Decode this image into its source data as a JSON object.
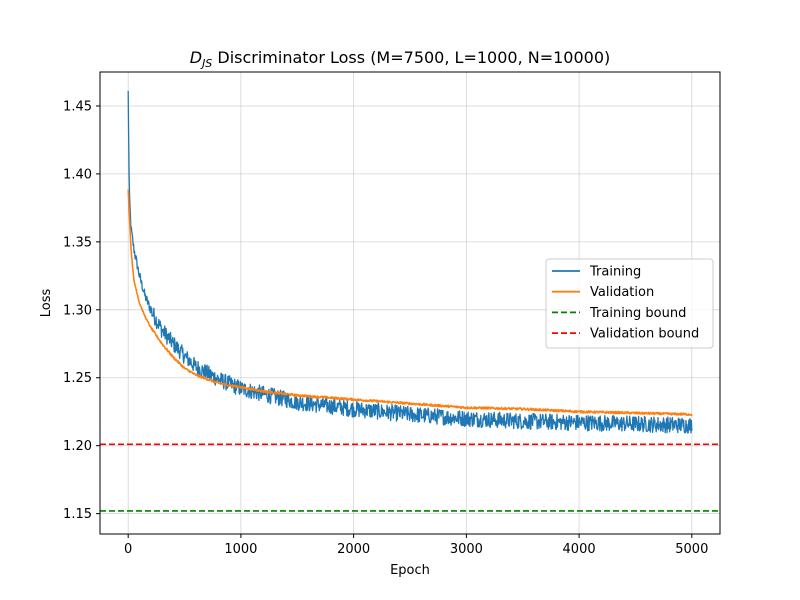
{
  "chart_data": {
    "type": "line",
    "title": {
      "main": "D",
      "sub": "JS",
      "rest": " Discriminator Loss (M=7500, L=1000, N=10000)"
    },
    "xlabel": "Epoch",
    "ylabel": "Loss",
    "xlim": [
      -250,
      5250
    ],
    "ylim": [
      1.135,
      1.475
    ],
    "xticks": [
      0,
      1000,
      2000,
      3000,
      4000,
      5000
    ],
    "xtick_labels": [
      "0",
      "1000",
      "2000",
      "3000",
      "4000",
      "5000"
    ],
    "yticks": [
      1.15,
      1.2,
      1.25,
      1.3,
      1.35,
      1.4,
      1.45
    ],
    "ytick_labels": [
      "1.15",
      "1.20",
      "1.25",
      "1.30",
      "1.35",
      "1.40",
      "1.45"
    ],
    "grid": true,
    "legend_position": "center-right",
    "series": [
      {
        "name": "Training",
        "color": "#1f77b4",
        "style": "solid",
        "x": [
          0,
          10,
          25,
          50,
          100,
          150,
          200,
          300,
          400,
          500,
          600,
          800,
          1000,
          1200,
          1500,
          2000,
          2500,
          3000,
          3500,
          4000,
          4500,
          5000
        ],
        "y": [
          1.46,
          1.385,
          1.36,
          1.345,
          1.325,
          1.31,
          1.3,
          1.285,
          1.275,
          1.266,
          1.258,
          1.249,
          1.242,
          1.238,
          1.232,
          1.227,
          1.223,
          1.22,
          1.218,
          1.217,
          1.216,
          1.215
        ],
        "noise": 0.006
      },
      {
        "name": "Validation",
        "color": "#ff7f0e",
        "style": "solid",
        "x": [
          0,
          10,
          25,
          50,
          100,
          150,
          200,
          300,
          400,
          500,
          600,
          800,
          1000,
          1200,
          1500,
          2000,
          2500,
          3000,
          3500,
          4000,
          4500,
          5000
        ],
        "y": [
          1.389,
          1.37,
          1.345,
          1.322,
          1.305,
          1.295,
          1.287,
          1.275,
          1.265,
          1.257,
          1.252,
          1.246,
          1.243,
          1.24,
          1.237,
          1.234,
          1.231,
          1.228,
          1.227,
          1.225,
          1.224,
          1.223
        ],
        "noise": 0.0008
      },
      {
        "name": "Training bound",
        "color": "#008000",
        "style": "dashed",
        "y": 1.152
      },
      {
        "name": "Validation bound",
        "color": "#ff0000",
        "style": "dashed",
        "y": 1.201
      }
    ]
  }
}
